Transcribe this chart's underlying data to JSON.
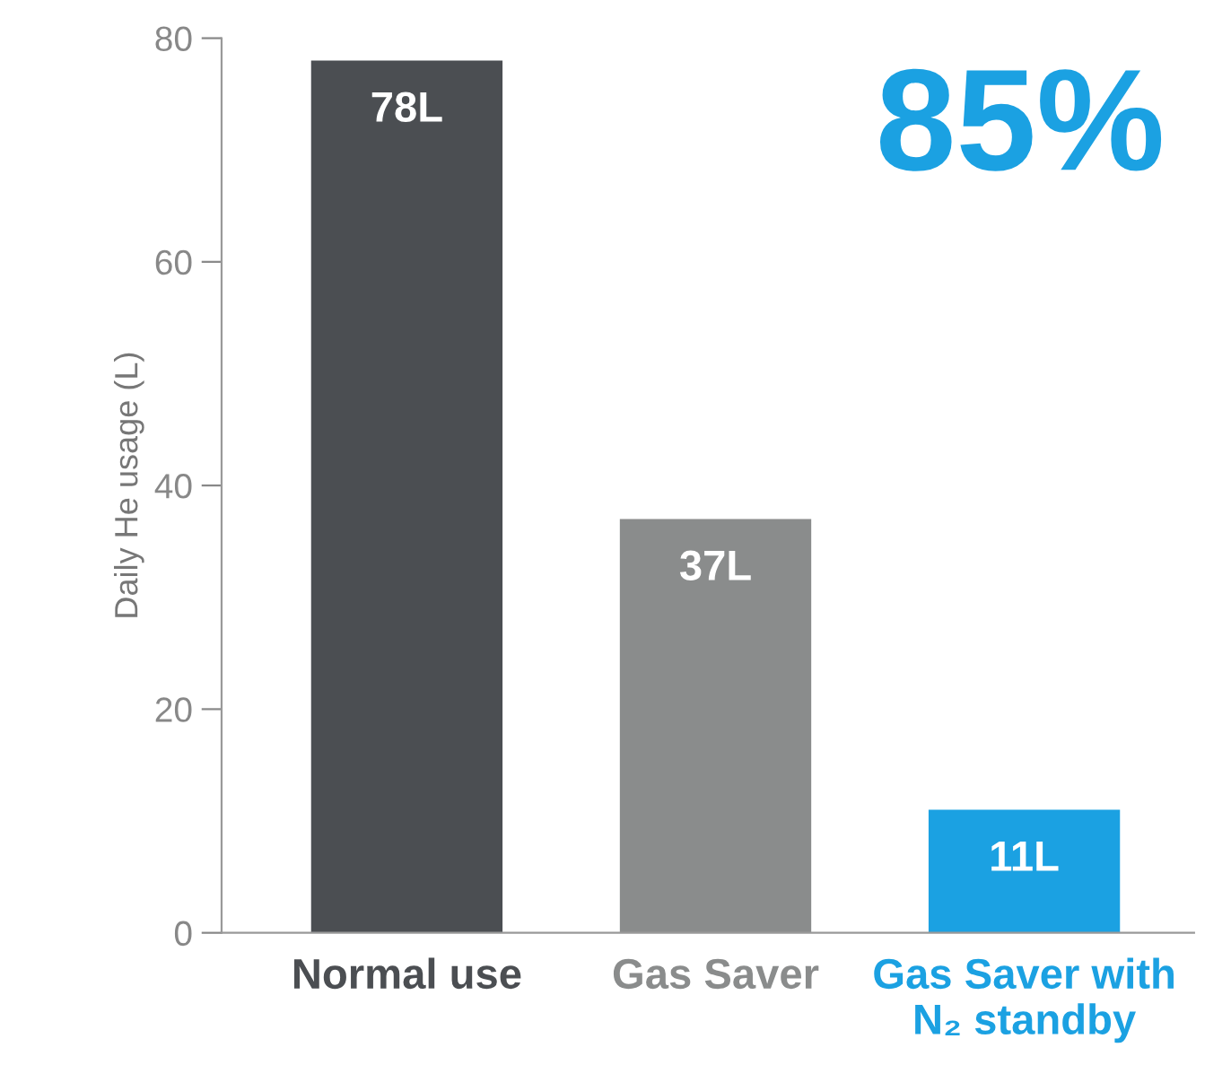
{
  "chart_data": {
    "type": "bar",
    "ylabel": "Daily He usage (L)",
    "categories": [
      "Normal use",
      "Gas Saver",
      "Gas Saver with\nN₂ standby"
    ],
    "values": [
      78,
      37,
      11
    ],
    "colors": [
      "#4b4e52",
      "#8a8c8c",
      "#1ba1e2"
    ],
    "value_labels": [
      "78L",
      "37L",
      "11L"
    ],
    "annotations": [
      "85%"
    ],
    "ylim": [
      0,
      80
    ],
    "yticks": [
      0,
      20,
      40,
      60,
      80
    ],
    "grid": false,
    "legend": false
  }
}
